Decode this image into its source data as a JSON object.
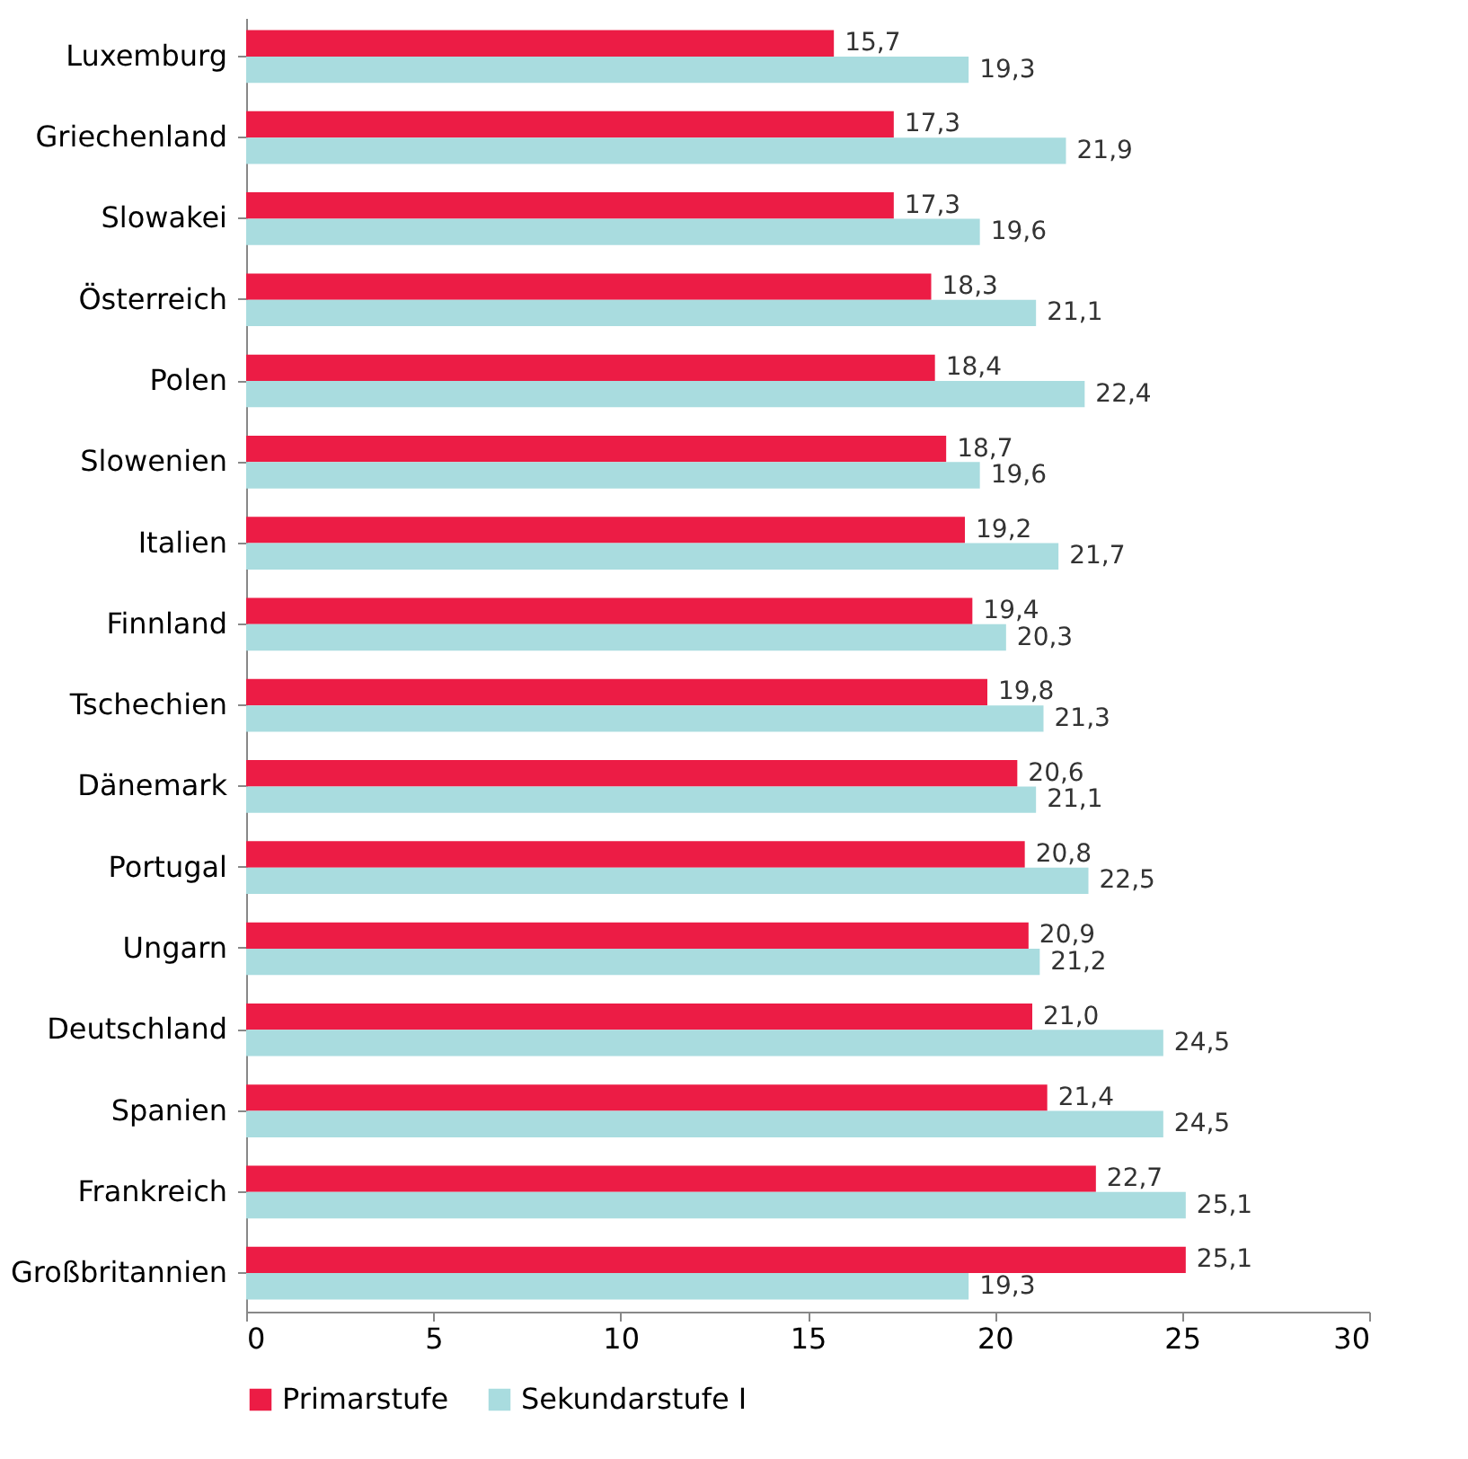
{
  "chart_data": {
    "type": "bar",
    "orientation": "horizontal",
    "legend": "bottom",
    "grid": false,
    "categories": [
      "Luxemburg",
      "Griechenland",
      "Slowakei",
      "Österreich",
      "Polen",
      "Slowenien",
      "Italien",
      "Finnland",
      "Tschechien",
      "Dänemark",
      "Portugal",
      "Ungarn",
      "Deutschland",
      "Spanien",
      "Frankreich",
      "Großbritannien"
    ],
    "xlim": [
      0,
      30
    ],
    "xticks": [
      0,
      5,
      10,
      15,
      20,
      25,
      30
    ],
    "series": [
      {
        "name": "Primarstufe",
        "color": "#ec1c45",
        "values": [
          15.7,
          17.3,
          17.3,
          18.3,
          18.4,
          18.7,
          19.2,
          19.4,
          19.8,
          20.6,
          20.8,
          20.9,
          21.0,
          21.4,
          22.7,
          25.1
        ],
        "value_labels": [
          "15,7",
          "17,3",
          "17,3",
          "18,3",
          "18,4",
          "18,7",
          "19,2",
          "19,4",
          "19,8",
          "20,6",
          "20,8",
          "20,9",
          "21,0",
          "21,4",
          "22,7",
          "25,1"
        ]
      },
      {
        "name": "Sekundarstufe I",
        "color": "#a9dcdf",
        "values": [
          19.3,
          21.9,
          19.6,
          21.1,
          22.4,
          19.6,
          21.7,
          20.3,
          21.3,
          21.1,
          22.5,
          21.2,
          24.5,
          24.5,
          25.1,
          19.3
        ],
        "value_labels": [
          "19,3",
          "21,9",
          "19,6",
          "21,1",
          "22,4",
          "19,6",
          "21,7",
          "20,3",
          "21,3",
          "21,1",
          "22,5",
          "21,2",
          "24,5",
          "24,5",
          "25,1",
          "19,3"
        ]
      }
    ]
  }
}
